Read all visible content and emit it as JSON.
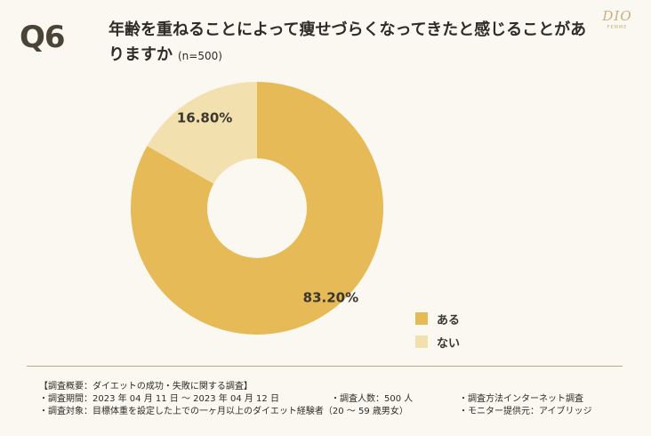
{
  "header": {
    "badge": "Q6",
    "title": "年齢を重ねることによって痩せづらくなってきたと感じることがありますか",
    "sample": "(n=500)"
  },
  "logo": {
    "word": "DIO",
    "sub": "FEMME"
  },
  "chart_data": {
    "type": "pie",
    "donut": true,
    "title": "年齢を重ねることによって痩せづらくなってきたと感じることがありますか",
    "categories": [
      "ある",
      "ない"
    ],
    "values": [
      83.2,
      16.8
    ],
    "value_labels": [
      "83.20%",
      "16.80%"
    ],
    "colors": [
      "#e6bb57",
      "#f2e0ae"
    ],
    "legend_position": "bottom-right"
  },
  "footer": {
    "heading": "【調査概要：ダイエットの成功・失敗に関する調査】",
    "period": "・調査期間：2023 年 04 月 11 日 ～ 2023 年 04 月 12 日",
    "count": "・調査人数：500 人",
    "method": "・調査方法インターネット調査",
    "target": "・調査対象：目標体重を設定した上での一ヶ月以上のダイエット経験者（20 ～ 59 歳男女）",
    "provider": "・モニター提供元：アイブリッジ"
  }
}
